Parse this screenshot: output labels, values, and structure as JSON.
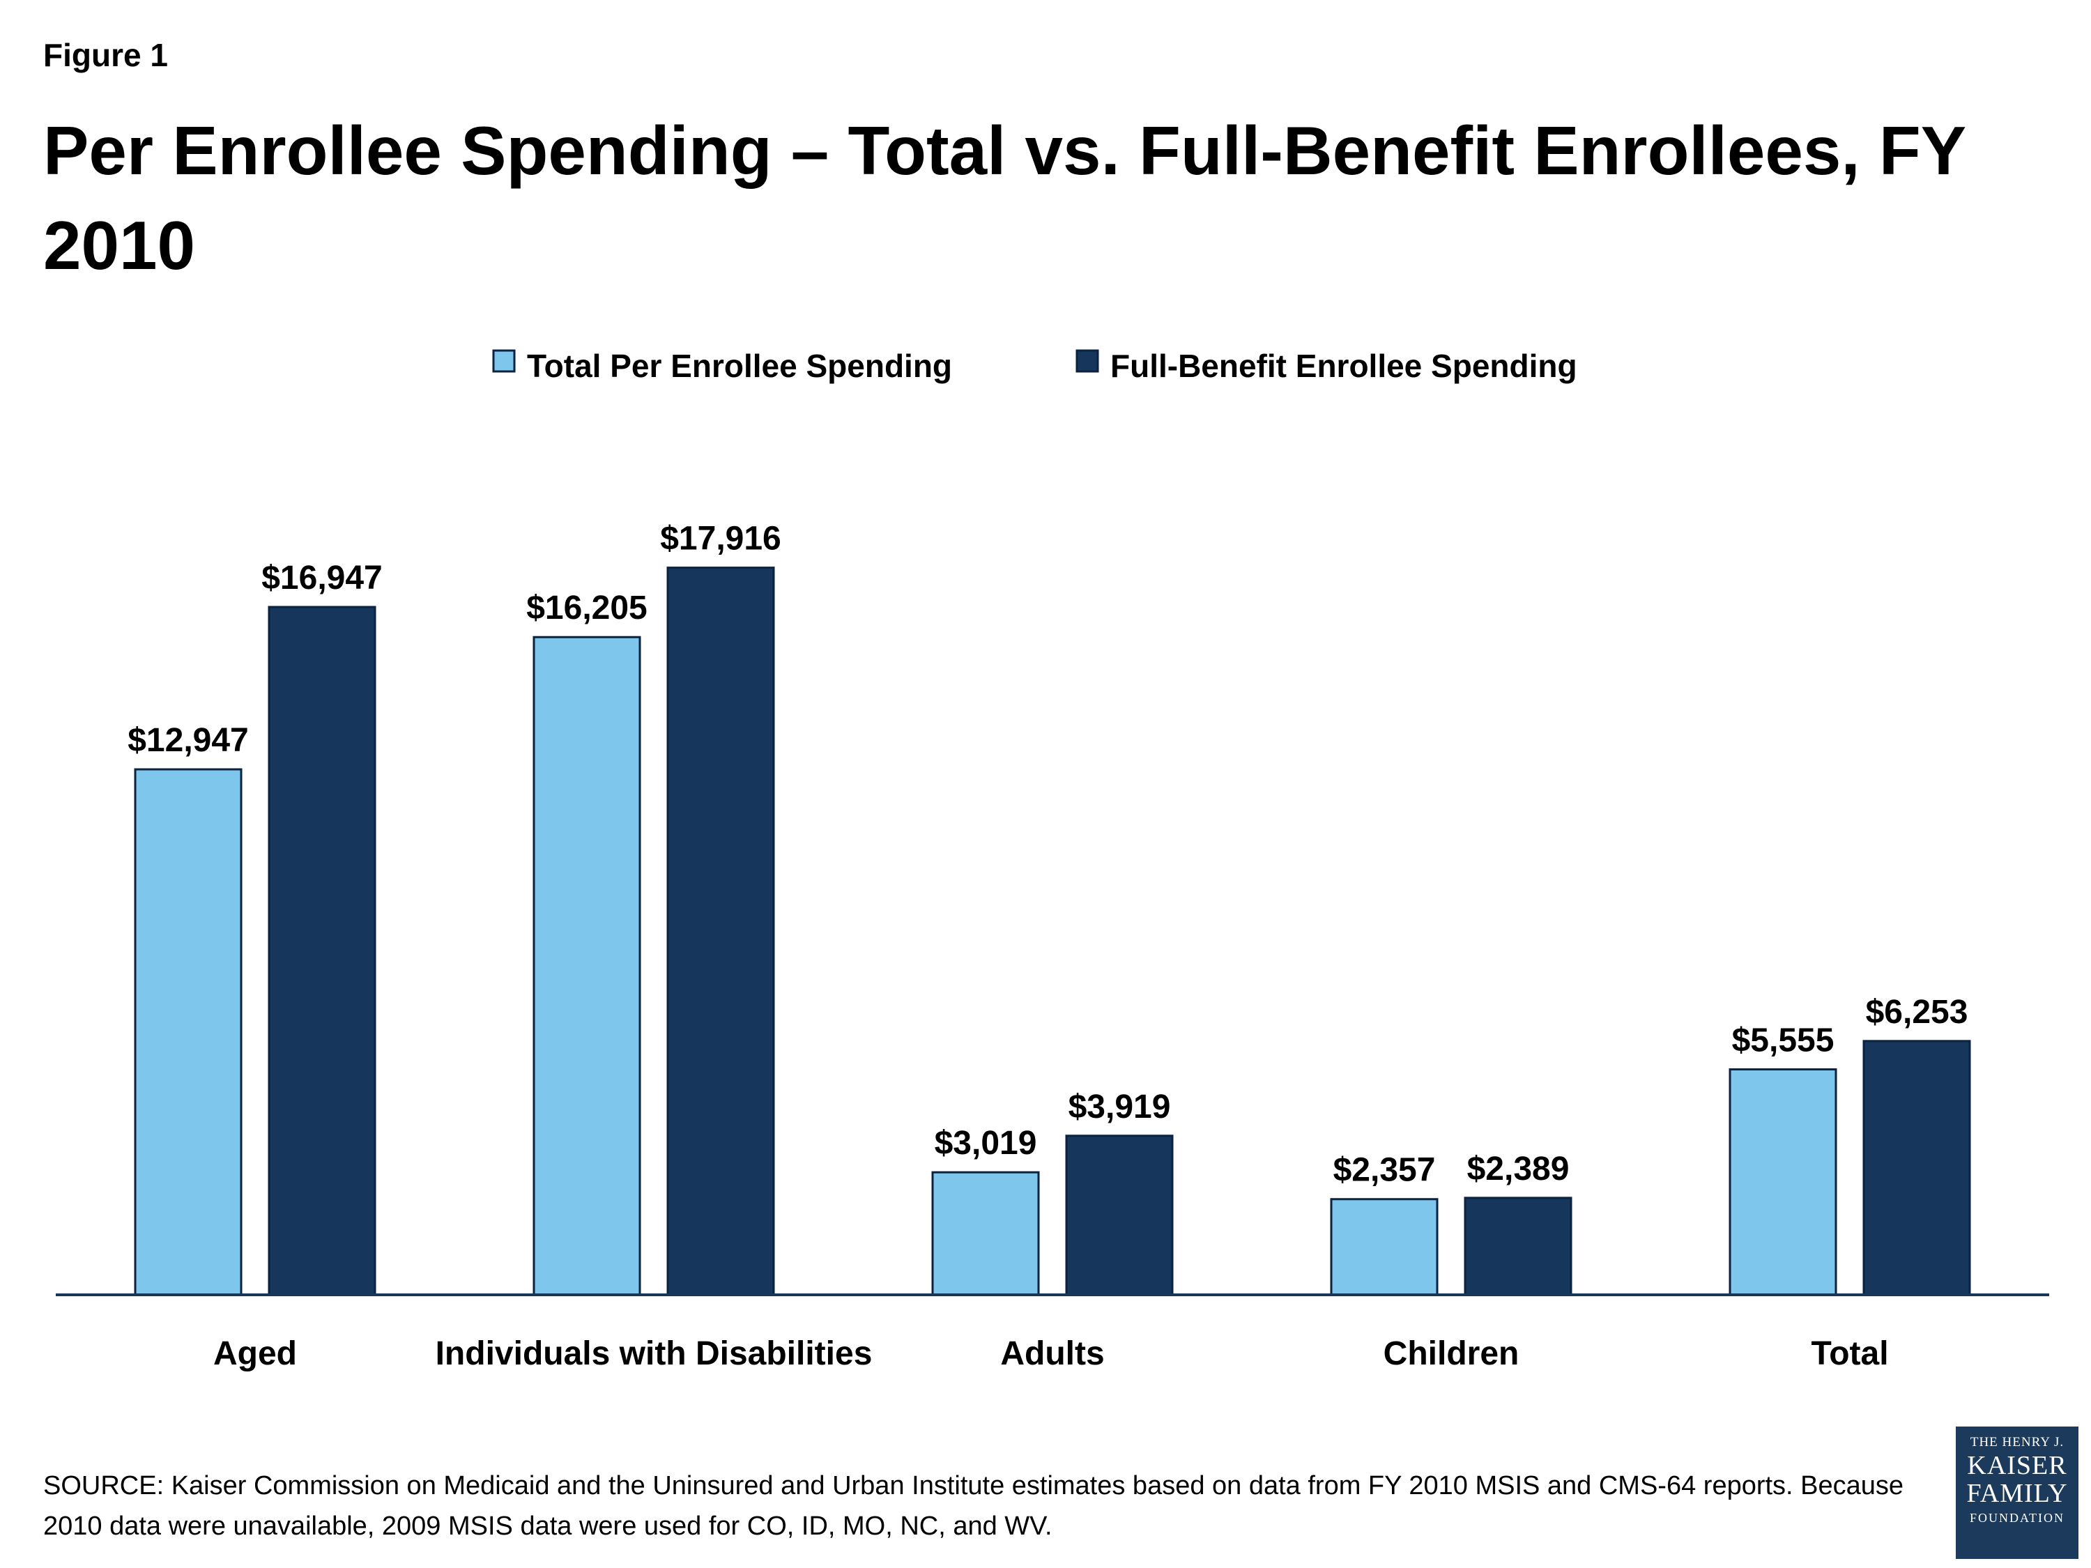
{
  "figure_label": "Figure 1",
  "title": "Per Enrollee Spending – Total vs. Full-Benefit Enrollees, FY 2010",
  "source": "SOURCE: Kaiser Commission on Medicaid and the Uninsured and Urban Institute estimates based on data from FY 2010 MSIS and CMS-64 reports. Because 2010 data were unavailable, 2009 MSIS data were used for CO, ID, MO, NC, and WV.",
  "logo": {
    "line1": "THE HENRY J.",
    "line2": "KAISER",
    "line3": "FAMILY",
    "line4": "FOUNDATION"
  },
  "colors": {
    "total_series": "#7fc6ec",
    "full_benefit_series": "#16365b",
    "axis": "#16365b",
    "bar_outline": "#0b2340"
  },
  "chart_data": {
    "type": "bar",
    "categories": [
      "Aged",
      "Individuals with Disabilities",
      "Adults",
      "Children",
      "Total"
    ],
    "series": [
      {
        "name": "Total Per Enrollee Spending",
        "values": [
          12947,
          16205,
          3019,
          2357,
          5555
        ]
      },
      {
        "name": "Full-Benefit Enrollee Spending",
        "values": [
          16947,
          17916,
          3919,
          2389,
          6253
        ]
      }
    ],
    "data_labels": [
      [
        "$12,947",
        "$16,205",
        "$3,019",
        "$2,357",
        "$5,555"
      ],
      [
        "$16,947",
        "$17,916",
        "$3,919",
        "$2,389",
        "$6,253"
      ]
    ],
    "ylim": [
      0,
      20000
    ],
    "grid": false,
    "legend_position": "top-center",
    "xlabel": "",
    "ylabel": ""
  }
}
